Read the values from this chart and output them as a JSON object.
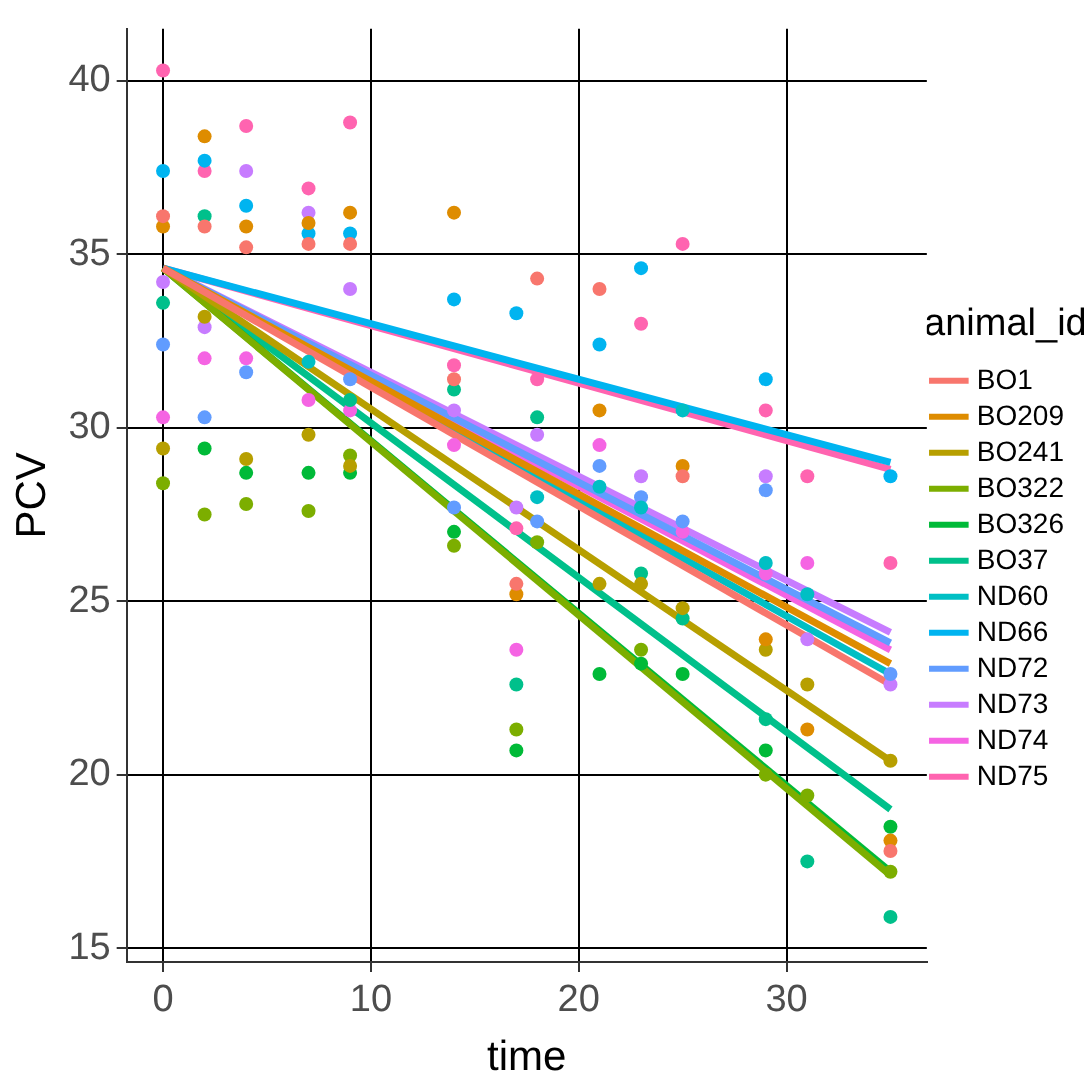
{
  "chart_data": {
    "type": "scatter",
    "xlabel": "time",
    "ylabel": "PCV",
    "legend_title": "animal_id",
    "legend": "right",
    "grid": true,
    "marker": "circle",
    "xlim": [
      -1.75,
      36.75
    ],
    "xticks": [
      0,
      10,
      20,
      30
    ],
    "ylim": [
      14.6,
      41.5
    ],
    "yticks": [
      15,
      20,
      25,
      30,
      35,
      40
    ],
    "series": [
      {
        "name": "BO1",
        "color": "#f8766d",
        "x": [
          0,
          2,
          4,
          7,
          9,
          14,
          17,
          18,
          21,
          25,
          35
        ],
        "values": [
          36.1,
          35.8,
          35.2,
          35.3,
          35.3,
          31.4,
          25.5,
          34.3,
          34.0,
          28.6,
          17.8
        ]
      },
      {
        "name": "BO209",
        "color": "#de8c00",
        "x": [
          0,
          2,
          4,
          7,
          9,
          14,
          17,
          21,
          25,
          29,
          31,
          35
        ],
        "values": [
          35.8,
          38.4,
          35.8,
          35.9,
          36.2,
          36.2,
          25.2,
          30.5,
          28.9,
          23.9,
          21.3,
          18.1
        ]
      },
      {
        "name": "BO241",
        "color": "#b79f00",
        "x": [
          0,
          2,
          4,
          7,
          9,
          21,
          23,
          25,
          29,
          31,
          35
        ],
        "values": [
          29.4,
          33.2,
          29.1,
          29.8,
          28.9,
          25.5,
          25.5,
          24.8,
          23.6,
          22.6,
          20.4
        ]
      },
      {
        "name": "BO322",
        "color": "#7cae00",
        "x": [
          0,
          2,
          4,
          7,
          9,
          14,
          17,
          18,
          23,
          29,
          31,
          35
        ],
        "values": [
          28.4,
          27.5,
          27.8,
          27.6,
          29.2,
          26.6,
          21.3,
          26.7,
          23.6,
          20.0,
          19.4,
          17.2
        ]
      },
      {
        "name": "BO326",
        "color": "#00ba38",
        "x": [
          2,
          4,
          7,
          9,
          14,
          17,
          21,
          23,
          25,
          29,
          35
        ],
        "values": [
          29.4,
          28.7,
          28.7,
          28.7,
          27.0,
          20.7,
          22.9,
          23.2,
          22.9,
          20.7,
          18.5
        ]
      },
      {
        "name": "BO37",
        "color": "#00c08b",
        "x": [
          0,
          2,
          9,
          14,
          17,
          18,
          23,
          25,
          29,
          31,
          35
        ],
        "values": [
          33.6,
          36.1,
          30.8,
          31.1,
          22.6,
          30.3,
          25.8,
          24.5,
          21.6,
          17.5,
          15.9
        ]
      },
      {
        "name": "ND60",
        "color": "#00bfc4",
        "x": [
          7,
          18,
          21,
          23,
          25,
          29,
          31
        ],
        "values": [
          31.9,
          28.0,
          28.3,
          27.7,
          30.5,
          26.1,
          25.2
        ]
      },
      {
        "name": "ND66",
        "color": "#00b4f0",
        "x": [
          0,
          2,
          4,
          7,
          9,
          14,
          17,
          21,
          23,
          29,
          35
        ],
        "values": [
          37.4,
          37.7,
          36.4,
          35.6,
          35.6,
          33.7,
          33.3,
          32.4,
          34.6,
          31.4,
          28.6
        ]
      },
      {
        "name": "ND72",
        "color": "#619cff",
        "x": [
          0,
          2,
          4,
          9,
          14,
          18,
          21,
          23,
          25,
          29,
          35
        ],
        "values": [
          32.4,
          30.3,
          31.6,
          31.4,
          27.7,
          27.3,
          28.9,
          28.0,
          27.3,
          28.2,
          22.9
        ]
      },
      {
        "name": "ND73",
        "color": "#c77cff",
        "x": [
          0,
          2,
          4,
          7,
          9,
          14,
          17,
          18,
          23,
          29,
          31,
          35
        ],
        "values": [
          34.2,
          32.9,
          37.4,
          36.2,
          34.0,
          30.5,
          27.7,
          29.8,
          28.6,
          28.6,
          23.9,
          22.6
        ]
      },
      {
        "name": "ND74",
        "color": "#f564e3",
        "x": [
          0,
          2,
          4,
          7,
          9,
          14,
          17,
          21,
          25,
          29,
          31
        ],
        "values": [
          30.3,
          32.0,
          32.0,
          30.8,
          30.5,
          29.5,
          23.6,
          29.5,
          27.0,
          25.8,
          26.1
        ]
      },
      {
        "name": "ND75",
        "color": "#ff64b0",
        "x": [
          0,
          2,
          4,
          7,
          9,
          14,
          17,
          18,
          23,
          25,
          29,
          31,
          35
        ],
        "values": [
          40.3,
          37.4,
          38.7,
          36.9,
          38.8,
          31.8,
          27.1,
          31.4,
          33.0,
          35.3,
          30.5,
          28.6,
          26.1
        ]
      },
      {
        "type": "line",
        "marker": "none",
        "color": "#f8766d",
        "x": [
          0,
          35
        ],
        "values": [
          34.6,
          22.6
        ]
      },
      {
        "type": "line",
        "marker": "none",
        "color": "#de8c00",
        "x": [
          0,
          35
        ],
        "values": [
          34.6,
          23.2
        ]
      },
      {
        "type": "line",
        "marker": "none",
        "color": "#b79f00",
        "x": [
          0,
          35
        ],
        "values": [
          34.6,
          20.4
        ]
      },
      {
        "type": "line",
        "marker": "none",
        "color": "#7cae00",
        "x": [
          0,
          35
        ],
        "values": [
          34.6,
          17.1
        ]
      },
      {
        "type": "line",
        "marker": "none",
        "color": "#00ba38",
        "x": [
          0,
          35
        ],
        "values": [
          34.6,
          17.2
        ]
      },
      {
        "type": "line",
        "marker": "none",
        "color": "#00c08b",
        "x": [
          0,
          35
        ],
        "values": [
          34.6,
          19.0
        ]
      },
      {
        "type": "line",
        "marker": "none",
        "color": "#00bfc4",
        "x": [
          0,
          35
        ],
        "values": [
          34.6,
          22.9
        ]
      },
      {
        "type": "line",
        "marker": "none",
        "color": "#00b4f0",
        "x": [
          0,
          35
        ],
        "values": [
          34.6,
          29.0
        ]
      },
      {
        "type": "line",
        "marker": "none",
        "color": "#619cff",
        "x": [
          0,
          35
        ],
        "values": [
          34.6,
          23.8
        ]
      },
      {
        "type": "line",
        "marker": "none",
        "color": "#c77cff",
        "x": [
          0,
          35
        ],
        "values": [
          34.6,
          24.1
        ]
      },
      {
        "type": "line",
        "marker": "none",
        "color": "#f564e3",
        "x": [
          0,
          35
        ],
        "values": [
          34.6,
          23.6
        ]
      },
      {
        "type": "line",
        "marker": "none",
        "color": "#ff64b0",
        "x": [
          0,
          35
        ],
        "values": [
          34.6,
          28.8
        ]
      }
    ]
  }
}
